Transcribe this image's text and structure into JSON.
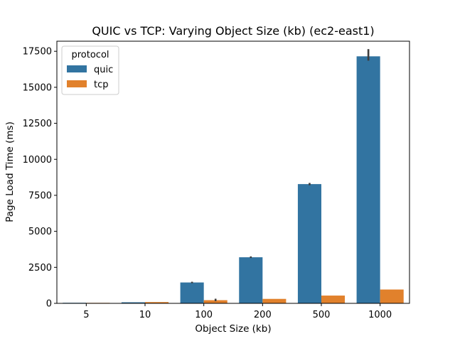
{
  "chart_data": {
    "type": "bar",
    "title": "QUIC vs TCP: Varying Object Size (kb) (ec2-east1)",
    "xlabel": "Object Size (kb)",
    "ylabel": "Page Load Time (ms)",
    "categories": [
      "5",
      "10",
      "100",
      "200",
      "500",
      "1000"
    ],
    "ylim": [
      0,
      18200
    ],
    "yticks": [
      0,
      2500,
      5000,
      7500,
      10000,
      12500,
      15000,
      17500
    ],
    "ytick_labels": [
      "0",
      "2500",
      "5000",
      "7500",
      "10000",
      "12500",
      "15000",
      "17500"
    ],
    "legend": {
      "title": "protocol",
      "placement": "top-left"
    },
    "series": [
      {
        "name": "quic",
        "color": "#3274a1",
        "values": [
          40,
          75,
          1450,
          3200,
          8280,
          17150
        ],
        "ci": [
          null,
          null,
          [
            1400,
            1500
          ],
          [
            3150,
            3260
          ],
          [
            8200,
            8360
          ],
          [
            16850,
            17650
          ]
        ]
      },
      {
        "name": "tcp",
        "color": "#e1812c",
        "values": [
          35,
          90,
          220,
          310,
          540,
          960
        ],
        "ci": [
          null,
          null,
          [
            150,
            320
          ],
          null,
          null,
          null
        ]
      }
    ]
  }
}
